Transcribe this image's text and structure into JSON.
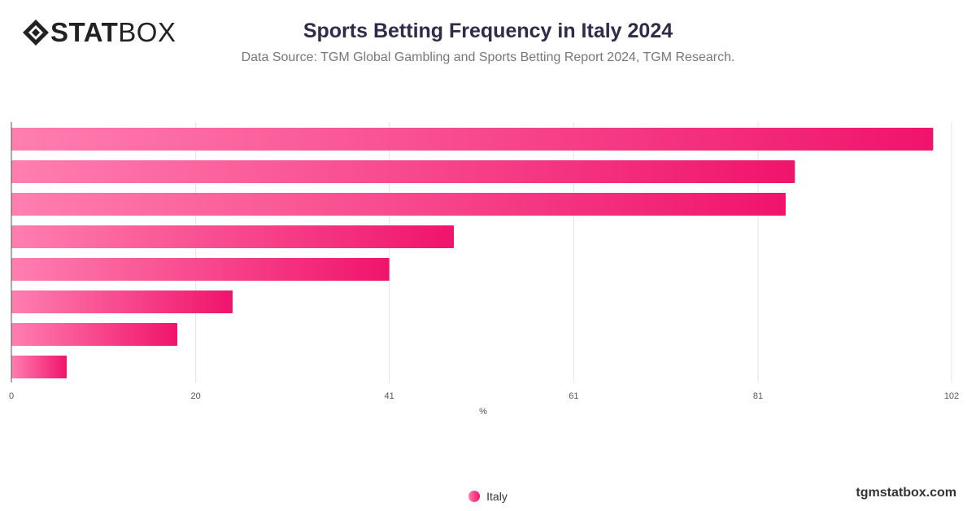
{
  "brand": {
    "logo_icon": "diamond-logo-icon",
    "logo_bold": "STAT",
    "logo_light": "BOX"
  },
  "header": {
    "title": "Sports Betting Frequency in Italy 2024",
    "subtitle": "Data Source: TGM Global Gambling and Sports Betting Report 2024, TGM Research."
  },
  "chart_data": {
    "type": "bar",
    "orientation": "horizontal",
    "categories": [
      "",
      "",
      "",
      "",
      "",
      "",
      "",
      ""
    ],
    "series": [
      {
        "name": "Italy",
        "values": [
          100,
          85,
          84,
          48,
          41,
          24,
          18,
          6
        ]
      }
    ],
    "xlabel": "%",
    "ylabel": "",
    "xlim": [
      0,
      102
    ],
    "xticks": [
      "0",
      "20",
      "41",
      "61",
      "81",
      "102"
    ],
    "grid": true,
    "legend": "bottom-center",
    "colors": {
      "bar_start": "#ff7eb0",
      "bar_end": "#f0146c",
      "grid": "#e3e3e3"
    }
  },
  "legend": {
    "label": "Italy"
  },
  "footer": {
    "site": "tgmstatbox.com"
  }
}
